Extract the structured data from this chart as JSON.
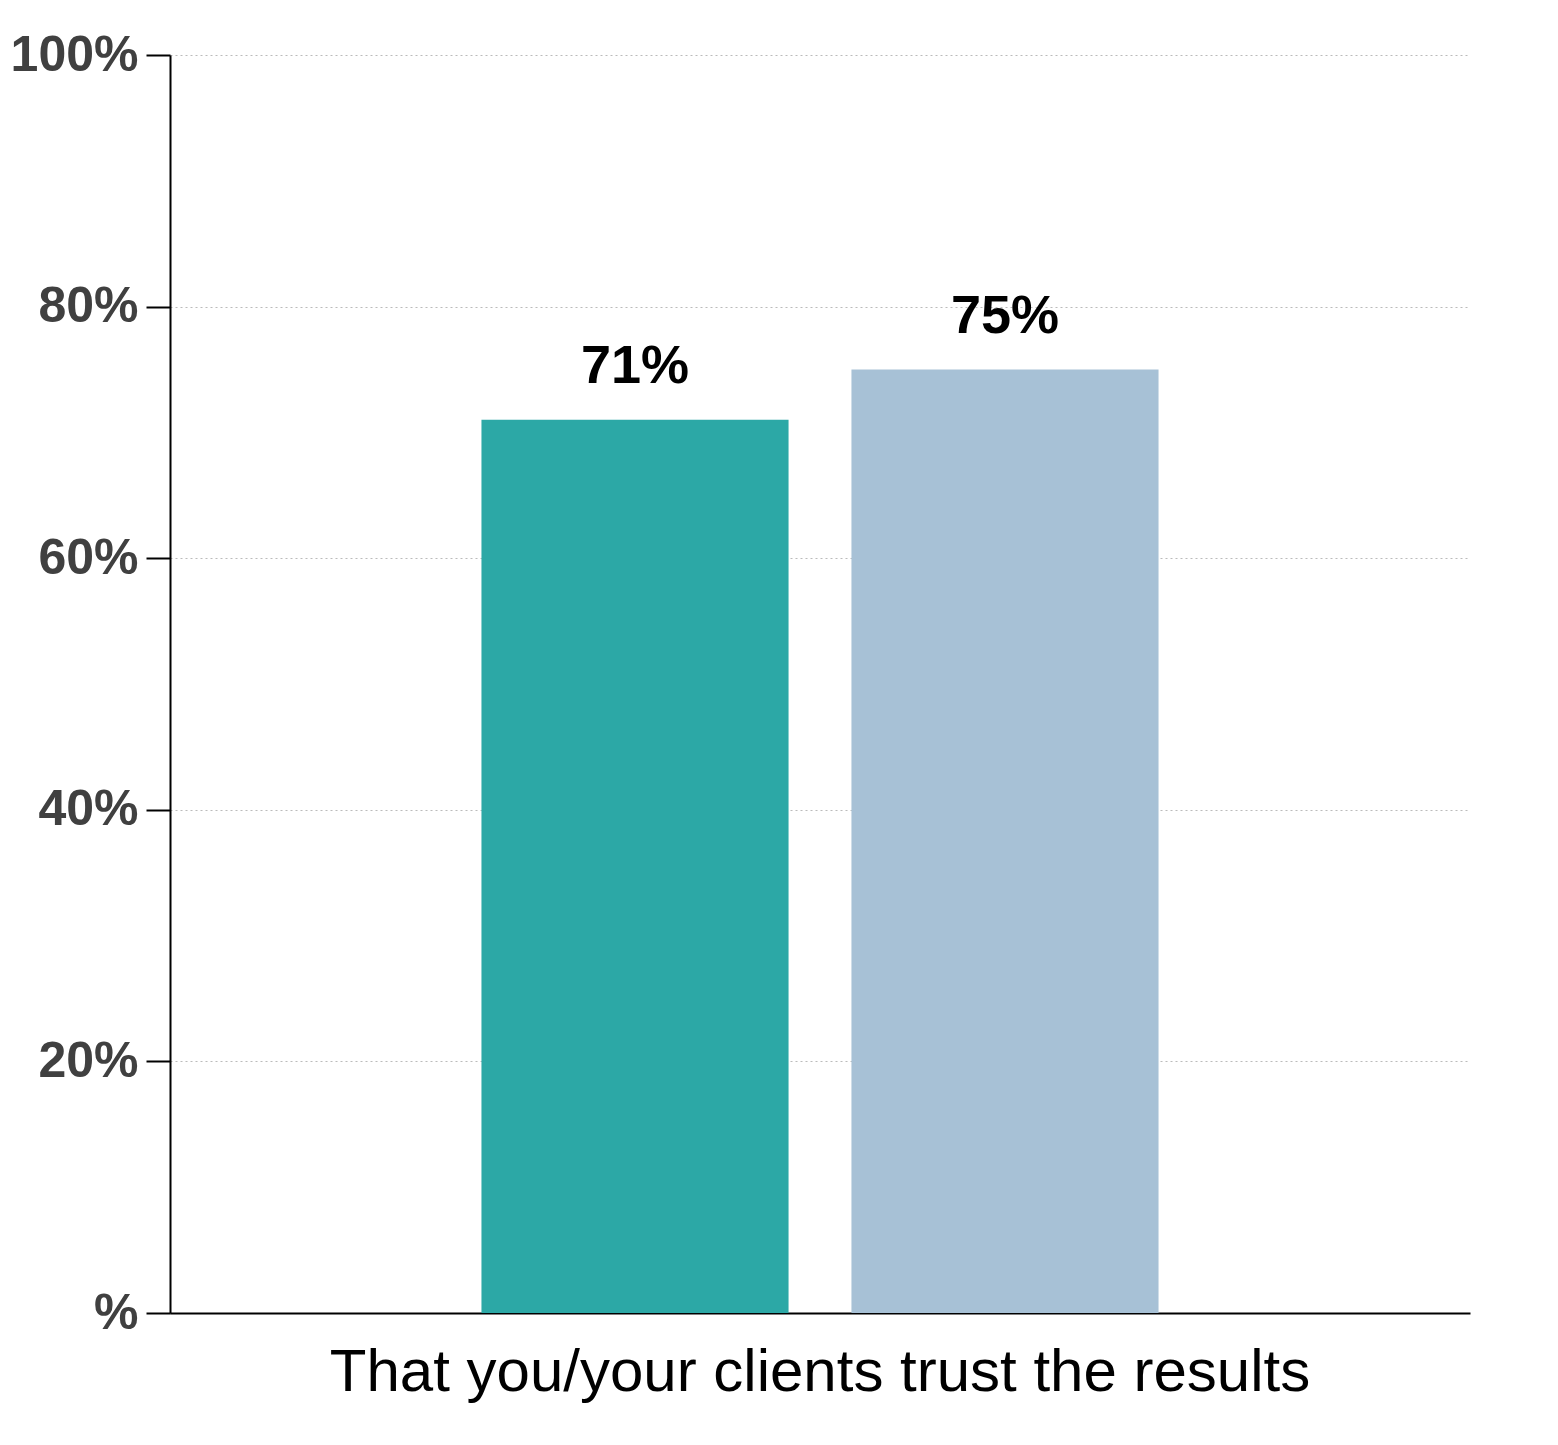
{
  "chart_data": {
    "type": "bar",
    "categories": [
      "That you/your clients  trust the results"
    ],
    "series": [
      {
        "color": "#2ca8a6",
        "values": [
          71
        ],
        "value_labels": [
          "71%"
        ]
      },
      {
        "color": "#a7c1d6",
        "values": [
          75
        ],
        "value_labels": [
          "75%"
        ]
      }
    ],
    "ylim": [
      0,
      100
    ],
    "yticks": [
      {
        "value": 0,
        "label": "%"
      },
      {
        "value": 20,
        "label": "20%"
      },
      {
        "value": 40,
        "label": "40%"
      },
      {
        "value": 60,
        "label": "60%"
      },
      {
        "value": 80,
        "label": "80%"
      },
      {
        "value": 100,
        "label": "100%"
      }
    ],
    "grid": "y"
  }
}
